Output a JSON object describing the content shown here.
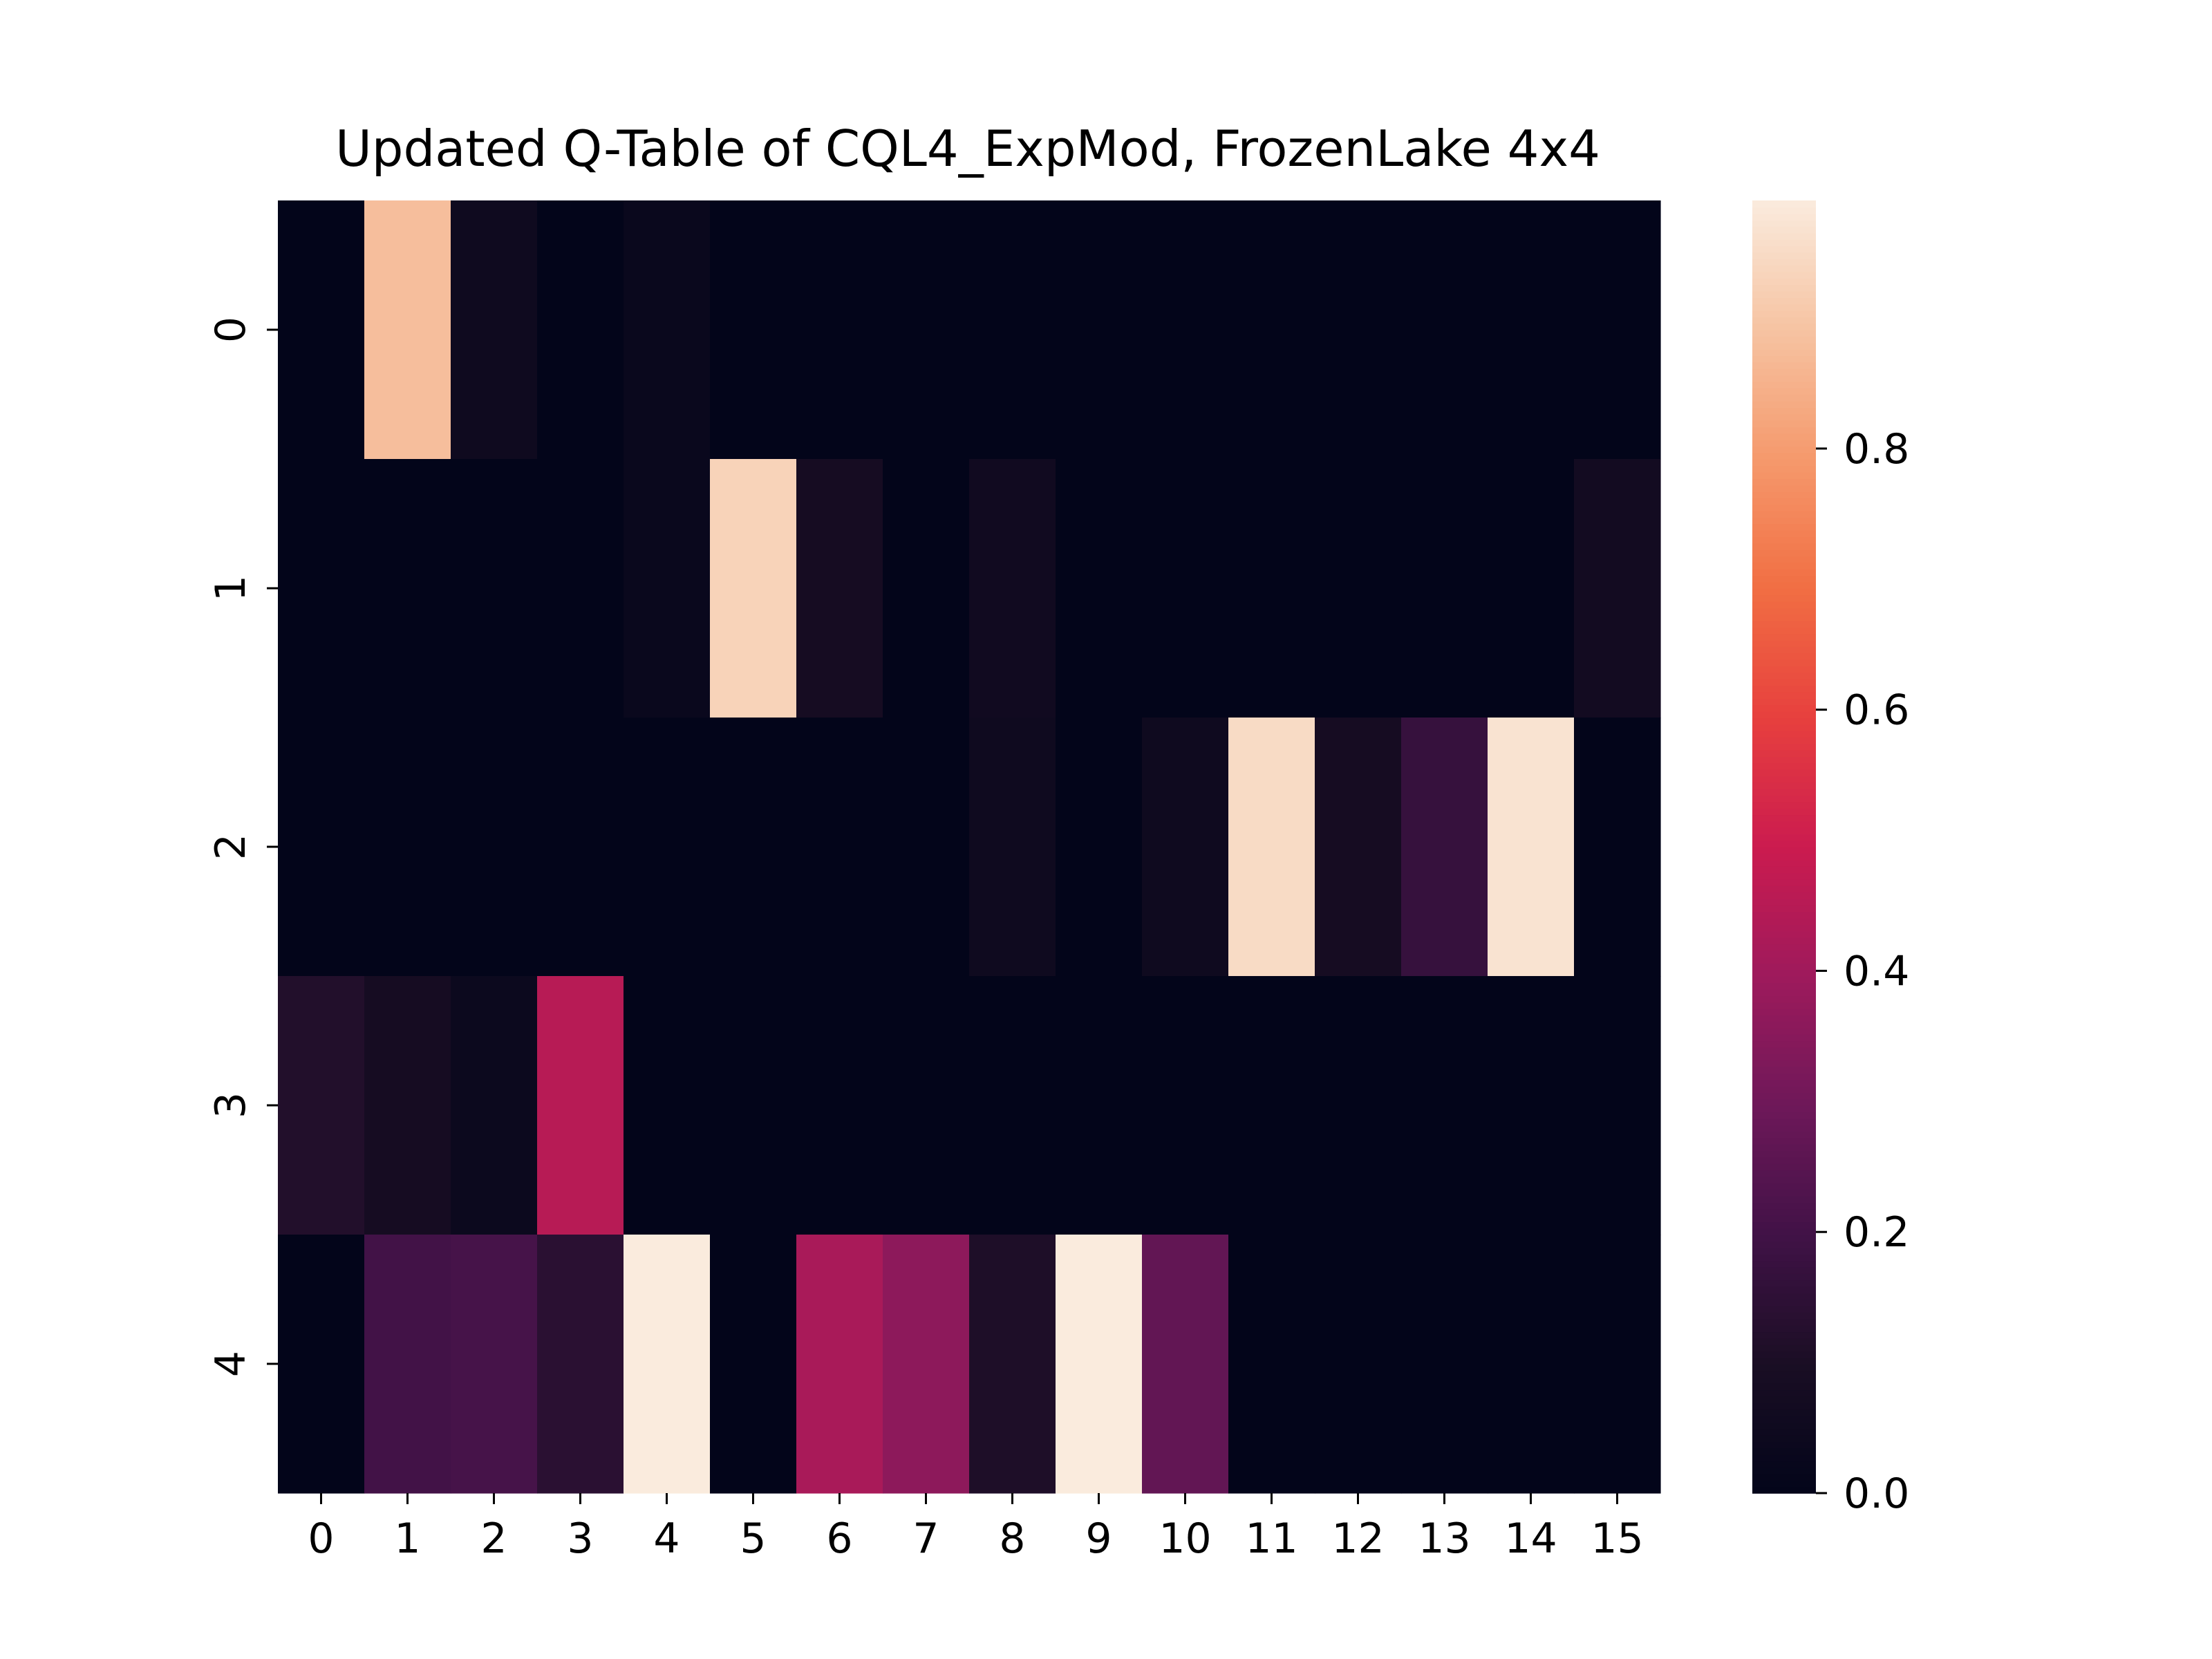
{
  "chart_data": {
    "type": "heatmap",
    "title": "Updated Q-Table of CQL4_ExpMod, FrozenLake 4x4",
    "xlabel": "",
    "ylabel": "",
    "x_ticks": [
      "0",
      "1",
      "2",
      "3",
      "4",
      "5",
      "6",
      "7",
      "8",
      "9",
      "10",
      "11",
      "12",
      "13",
      "14",
      "15"
    ],
    "y_ticks": [
      "0",
      "1",
      "2",
      "3",
      "4"
    ],
    "values": [
      [
        0.0,
        0.88,
        0.05,
        0.0,
        0.03,
        0.0,
        0.0,
        0.0,
        0.0,
        0.0,
        0.0,
        0.0,
        0.0,
        0.0,
        0.0,
        0.0
      ],
      [
        0.0,
        0.0,
        0.0,
        0.0,
        0.03,
        0.93,
        0.08,
        0.0,
        0.06,
        0.0,
        0.0,
        0.0,
        0.0,
        0.0,
        0.0,
        0.07
      ],
      [
        0.0,
        0.0,
        0.0,
        0.0,
        0.0,
        0.0,
        0.0,
        0.0,
        0.05,
        0.0,
        0.05,
        0.95,
        0.08,
        0.17,
        0.97,
        0.0
      ],
      [
        0.12,
        0.08,
        0.04,
        0.45,
        0.0,
        0.0,
        0.0,
        0.0,
        0.0,
        0.0,
        0.0,
        0.0,
        0.0,
        0.0,
        0.0,
        0.0
      ],
      [
        0.0,
        0.2,
        0.21,
        0.14,
        0.99,
        0.0,
        0.42,
        0.36,
        0.11,
        0.99,
        0.27,
        0.0,
        0.0,
        0.0,
        0.0,
        0.0
      ]
    ],
    "colormap": "rocket",
    "colorbar": {
      "vmin": 0.0,
      "vmax": 0.99,
      "ticks": [
        0.0,
        0.2,
        0.4,
        0.6,
        0.8
      ],
      "tick_labels": [
        "0.0",
        "0.2",
        "0.4",
        "0.6",
        "0.8"
      ]
    },
    "grid": false
  }
}
